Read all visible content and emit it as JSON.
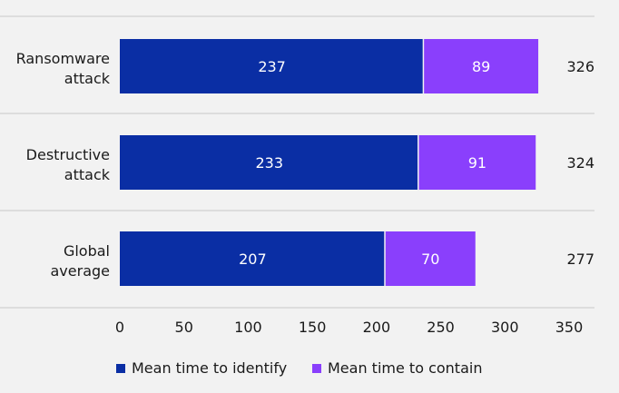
{
  "chart_data": {
    "type": "bar",
    "orientation": "horizontal",
    "stacked": true,
    "categories": [
      [
        "Ransomware",
        "attack"
      ],
      [
        "Destructive",
        "attack"
      ],
      [
        "Global",
        "average"
      ]
    ],
    "series": [
      {
        "name": "Mean time to identify",
        "values": [
          237,
          233,
          207
        ],
        "color": "#0a2ea4",
        "label_color": "#ffffff"
      },
      {
        "name": "Mean time to contain",
        "values": [
          89,
          91,
          70
        ],
        "color": "#8a3ffc",
        "label_color": "#ffffff"
      }
    ],
    "totals": [
      326,
      324,
      277
    ],
    "xlim": [
      0,
      350
    ],
    "xticks": [
      0,
      50,
      100,
      150,
      200,
      250,
      300,
      350
    ],
    "grid": "horizontal separators",
    "legend_position": "bottom-center",
    "gridline_color": "#c8c8c8"
  }
}
